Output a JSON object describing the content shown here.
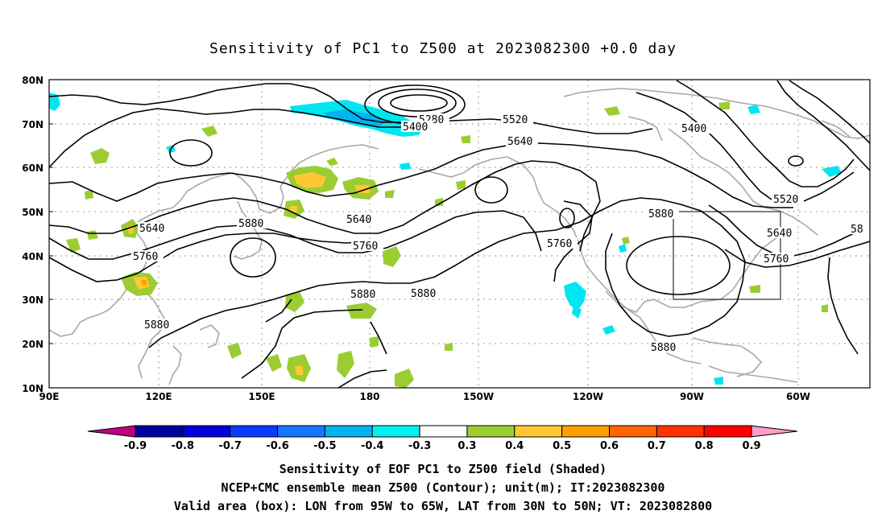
{
  "title": "Sensitivity of PC1 to Z500 at 2023082300 +0.0 day",
  "lat_ticks": [
    "80N",
    "70N",
    "60N",
    "50N",
    "40N",
    "30N",
    "20N",
    "10N"
  ],
  "lon_ticks": [
    "90E",
    "120E",
    "150E",
    "180",
    "150W",
    "120W",
    "90W",
    "60W"
  ],
  "contour_labels": [
    "5280",
    "5400",
    "5520",
    "5640",
    "5400",
    "5520",
    "5640",
    "5880",
    "5760",
    "5640",
    "5880",
    "5760",
    "5880",
    "5880",
    "5880",
    "5880",
    "5640",
    "5760",
    "58",
    "5760",
    "5880"
  ],
  "colorbar": {
    "labels": [
      "-0.9",
      "-0.8",
      "-0.7",
      "-0.6",
      "-0.5",
      "-0.4",
      "-0.3",
      "0.3",
      "0.4",
      "0.5",
      "0.6",
      "0.7",
      "0.8",
      "0.9"
    ],
    "colors": {
      "low_arrow": "#c0007f",
      "bins": [
        "#0000a0",
        "#0000dd",
        "#0a3cff",
        "#1478ff",
        "#00b4f0",
        "#00f0f0",
        "#ffffff",
        "#9bcd32",
        "#ffc832",
        "#ffa000",
        "#ff6400",
        "#ff3200",
        "#ff0000"
      ],
      "high_arrow": "#ff9ec8"
    }
  },
  "shading_colors": {
    "cyan": "#00e6f0",
    "lightblue": "#00b4f0",
    "green": "#9bcd32",
    "yellow": "#ffc832",
    "orange": "#ffa000",
    "coast": "#a8a8a8"
  },
  "valid_box": {
    "lon_from": "95W",
    "lon_to": "65W",
    "lat_from": "30N",
    "lat_to": "50N"
  },
  "captions": {
    "line1": "Sensitivity of EOF PC1 to Z500 field (Shaded)",
    "line2": "NCEP+CMC ensemble mean Z500 (Contour); unit(m); IT:2023082300",
    "line3": "Valid area (box): LON from 95W to 65W, LAT from 30N to 50N; VT: 2023082800"
  }
}
